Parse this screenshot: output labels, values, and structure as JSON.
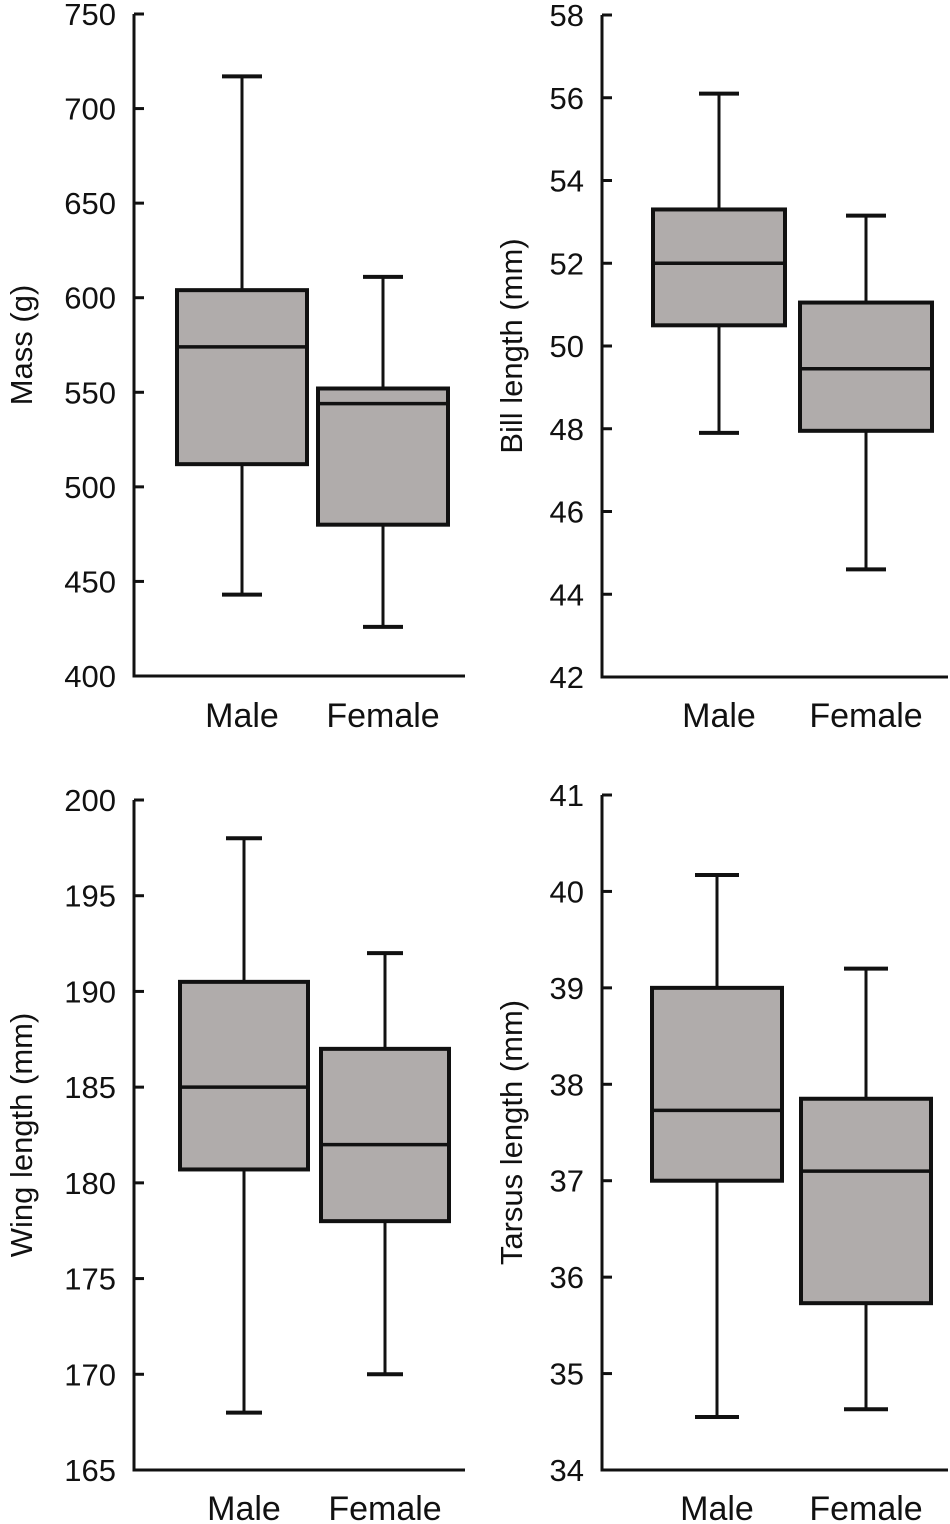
{
  "chart_data": [
    {
      "type": "box",
      "ylabel": "Mass (g)",
      "categories": [
        "Male",
        "Female"
      ],
      "ylim": [
        400,
        750
      ],
      "yticks": [
        400,
        450,
        500,
        550,
        600,
        650,
        700,
        750
      ],
      "series": [
        {
          "name": "Male",
          "whisker_low": 443,
          "q1": 512,
          "median": 574,
          "q3": 604,
          "whisker_high": 717
        },
        {
          "name": "Female",
          "whisker_low": 426,
          "q1": 480,
          "median": 544,
          "q3": 552,
          "whisker_high": 611
        }
      ]
    },
    {
      "type": "box",
      "ylabel": "Bill length (mm)",
      "categories": [
        "Male",
        "Female"
      ],
      "ylim": [
        42,
        58
      ],
      "yticks": [
        42,
        44,
        46,
        48,
        50,
        52,
        54,
        56,
        58
      ],
      "series": [
        {
          "name": "Male",
          "whisker_low": 47.9,
          "q1": 50.5,
          "median": 52.0,
          "q3": 53.3,
          "whisker_high": 56.1
        },
        {
          "name": "Female",
          "whisker_low": 44.6,
          "q1": 47.95,
          "median": 49.45,
          "q3": 51.05,
          "whisker_high": 53.15
        }
      ]
    },
    {
      "type": "box",
      "ylabel": "Wing length (mm)",
      "categories": [
        "Male",
        "Female"
      ],
      "ylim": [
        165,
        200
      ],
      "yticks": [
        165,
        170,
        175,
        180,
        185,
        190,
        195,
        200
      ],
      "series": [
        {
          "name": "Male",
          "whisker_low": 168,
          "q1": 180.7,
          "median": 185,
          "q3": 190.5,
          "whisker_high": 198
        },
        {
          "name": "Female",
          "whisker_low": 170,
          "q1": 178,
          "median": 182,
          "q3": 187,
          "whisker_high": 192
        }
      ]
    },
    {
      "type": "box",
      "ylabel": "Tarsus length (mm)",
      "categories": [
        "Male",
        "Female"
      ],
      "ylim": [
        34,
        41
      ],
      "yticks": [
        34,
        35,
        36,
        37,
        38,
        39,
        40,
        41
      ],
      "series": [
        {
          "name": "Male",
          "whisker_low": 34.55,
          "q1": 37.0,
          "median": 37.73,
          "q3": 39.0,
          "whisker_high": 40.17
        },
        {
          "name": "Female",
          "whisker_low": 34.63,
          "q1": 35.73,
          "median": 37.1,
          "q3": 37.85,
          "whisker_high": 39.2
        }
      ]
    }
  ],
  "colors": {
    "box_fill": "#b0acab",
    "line": "#111111"
  }
}
